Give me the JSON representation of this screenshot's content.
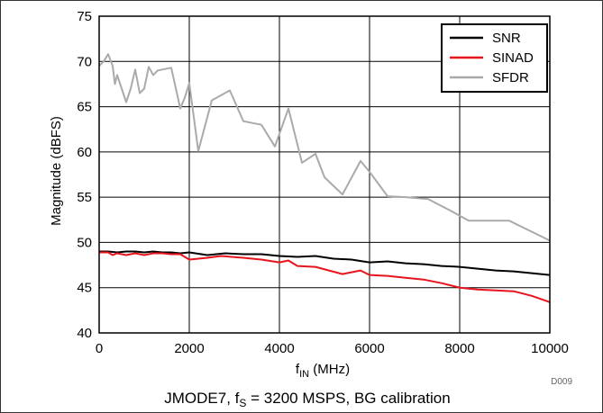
{
  "chart_data": {
    "type": "line",
    "title": "",
    "caption": {
      "prefix": "JMODE7, f",
      "sub": "S",
      "suffix": " = 3200 MSPS, BG calibration"
    },
    "figure_id": "D009",
    "xlabel": {
      "main": "f",
      "sub": "IN",
      "rest": " (MHz)"
    },
    "ylabel": "Magnitude (dBFS)",
    "xlim": [
      0,
      10000
    ],
    "ylim": [
      40,
      75
    ],
    "xticks": [
      0,
      2000,
      4000,
      6000,
      8000,
      10000
    ],
    "yticks": [
      40,
      45,
      50,
      55,
      60,
      65,
      70,
      75
    ],
    "grid": true,
    "legend_position": "top-right",
    "colors": {
      "SNR": "#000000",
      "SINAD": "#e8141c",
      "SFDR": "#aaaaaa"
    },
    "series": [
      {
        "name": "SNR",
        "x": [
          0,
          200,
          400,
          600,
          800,
          1000,
          1200,
          1400,
          1600,
          1800,
          2000,
          2400,
          2800,
          3200,
          3600,
          4000,
          4400,
          4800,
          5200,
          5600,
          6000,
          6400,
          6800,
          7200,
          7600,
          8000,
          8400,
          8800,
          9200,
          9600,
          10000
        ],
        "values": [
          49.0,
          49.0,
          48.9,
          49.0,
          49.0,
          48.9,
          49.0,
          48.9,
          48.9,
          48.8,
          48.9,
          48.6,
          48.8,
          48.7,
          48.7,
          48.5,
          48.4,
          48.5,
          48.2,
          48.1,
          47.8,
          47.9,
          47.7,
          47.6,
          47.4,
          47.3,
          47.1,
          46.9,
          46.8,
          46.6,
          46.4
        ]
      },
      {
        "name": "SINAD",
        "x": [
          0,
          200,
          300,
          400,
          600,
          800,
          1000,
          1200,
          1400,
          1600,
          1800,
          2000,
          2400,
          2700,
          3200,
          3600,
          4000,
          4200,
          4400,
          4800,
          5400,
          5800,
          6000,
          6400,
          6800,
          7200,
          7600,
          8000,
          8400,
          8800,
          9200,
          9600,
          10000
        ],
        "values": [
          48.9,
          48.9,
          48.6,
          48.8,
          48.6,
          48.8,
          48.6,
          48.8,
          48.8,
          48.7,
          48.7,
          48.1,
          48.3,
          48.5,
          48.3,
          48.1,
          47.8,
          48.0,
          47.4,
          47.3,
          46.5,
          46.9,
          46.4,
          46.3,
          46.1,
          45.9,
          45.5,
          45.0,
          44.8,
          44.7,
          44.6,
          44.1,
          43.4
        ]
      },
      {
        "name": "SFDR",
        "x": [
          0,
          100,
          200,
          300,
          350,
          400,
          500,
          600,
          700,
          800,
          900,
          1000,
          1100,
          1200,
          1300,
          1400,
          1600,
          1800,
          1900,
          2000,
          2200,
          2500,
          2900,
          3200,
          3600,
          3900,
          4200,
          4500,
          4800,
          5000,
          5400,
          5800,
          6000,
          6400,
          6800,
          7300,
          7800,
          8200,
          8600,
          9100,
          10000
        ],
        "values": [
          69.5,
          70.0,
          70.8,
          69.5,
          67.5,
          68.5,
          67.0,
          65.5,
          67.0,
          69.1,
          66.5,
          67.0,
          69.4,
          68.5,
          69.0,
          69.1,
          69.3,
          64.8,
          66.0,
          67.6,
          60.1,
          65.7,
          66.8,
          63.4,
          63.0,
          60.6,
          64.8,
          58.8,
          59.8,
          57.2,
          55.3,
          59.0,
          57.8,
          55.1,
          55.0,
          54.8,
          53.5,
          52.4,
          52.4,
          52.4,
          50.2
        ]
      }
    ]
  }
}
